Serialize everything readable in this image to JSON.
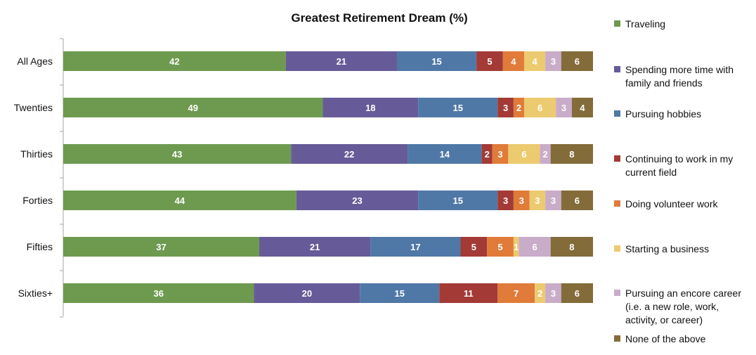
{
  "chart_data": {
    "type": "bar",
    "orientation": "horizontal",
    "stacked": true,
    "title": "Greatest Retirement Dream (%)",
    "xlabel": "",
    "ylabel": "",
    "xlim": [
      0,
      100
    ],
    "grid": false,
    "legend_position": "right",
    "categories": [
      "All Ages",
      "Twenties",
      "Thirties",
      "Forties",
      "Fifties",
      "Sixties+"
    ],
    "series": [
      {
        "name": "Traveling",
        "color": "#6e9a4f",
        "values": [
          42,
          49,
          43,
          44,
          37,
          36
        ]
      },
      {
        "name": "Spending more time with family and friends",
        "color": "#665b98",
        "values": [
          21,
          18,
          22,
          23,
          21,
          20
        ]
      },
      {
        "name": "Pursuing hobbies",
        "color": "#4f78a7",
        "values": [
          15,
          15,
          14,
          15,
          17,
          15
        ]
      },
      {
        "name": "Continuing to work in my current field",
        "color": "#a33a36",
        "values": [
          5,
          3,
          2,
          3,
          5,
          11
        ]
      },
      {
        "name": "Doing volunteer work",
        "color": "#e07b39",
        "values": [
          4,
          2,
          3,
          3,
          5,
          7
        ]
      },
      {
        "name": "Starting a business",
        "color": "#ecca6f",
        "values": [
          4,
          6,
          6,
          3,
          1,
          2
        ]
      },
      {
        "name": "Pursuing an encore career (i.e. a new role, work, activity, or career)",
        "color": "#c9acc9",
        "values": [
          3,
          3,
          2,
          3,
          6,
          3
        ]
      },
      {
        "name": "None of the above",
        "color": "#836c3a",
        "values": [
          6,
          4,
          8,
          6,
          8,
          6
        ]
      }
    ]
  },
  "legend_lines": [
    [
      "Traveling"
    ],
    [
      "Spending more time with",
      "family and friends"
    ],
    [
      "Pursuing hobbies"
    ],
    [
      "Continuing to work in my",
      "current field"
    ],
    [
      "Doing volunteer work"
    ],
    [
      "Starting a business"
    ],
    [
      "Pursuing an encore career",
      "(i.e. a new role, work,",
      "activity, or career)"
    ],
    [
      "None of the above"
    ]
  ]
}
